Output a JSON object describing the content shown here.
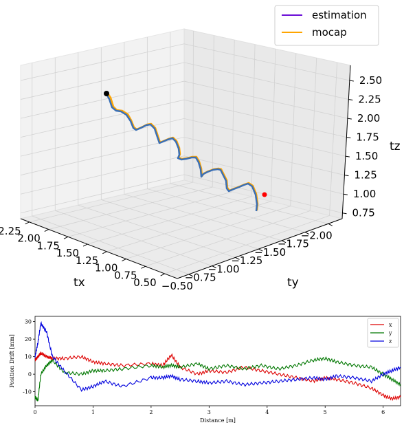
{
  "chart_data": [
    {
      "type": "line",
      "subtype": "3d-trajectory",
      "xlabel": "tx",
      "ylabel": "ty",
      "zlabel": "tz",
      "x_ticks": [
        "2.25",
        "2.00",
        "1.75",
        "1.50",
        "1.25",
        "1.00",
        "0.75",
        "0.50"
      ],
      "y_ticks": [
        "−0.50",
        "−0.75",
        "−1.00",
        "−1.25",
        "−1.50",
        "−1.75",
        "−2.00"
      ],
      "z_ticks": [
        "0.75",
        "1.00",
        "1.25",
        "1.50",
        "1.75",
        "2.00",
        "2.25",
        "2.50"
      ],
      "xlim": [
        0.5,
        2.25
      ],
      "ylim": [
        -2.0,
        -0.5
      ],
      "zlim": [
        0.75,
        2.5
      ],
      "grid": true,
      "legend_position": "top-right",
      "series": [
        {
          "name": "estimation",
          "color": "#6a0dd6"
        },
        {
          "name": "mocap",
          "color": "#ffa500"
        }
      ],
      "start_marker_color": "#000000",
      "end_marker_color": "#ff0000"
    },
    {
      "type": "line",
      "xlabel": "Distance [m]",
      "ylabel": "Position Drift [mm]",
      "xlim": [
        0,
        6.3
      ],
      "ylim": [
        -18,
        33
      ],
      "x_ticks": [
        0,
        1,
        2,
        3,
        4,
        5,
        6
      ],
      "y_ticks": [
        -10,
        0,
        10,
        20,
        30
      ],
      "grid": false,
      "legend_position": "top-right",
      "x": [
        0,
        0.05,
        0.1,
        0.2,
        0.3,
        0.5,
        0.8,
        1.0,
        1.2,
        1.5,
        2.0,
        2.2,
        2.35,
        2.5,
        2.8,
        3.0,
        3.3,
        3.6,
        3.9,
        4.2,
        4.5,
        4.8,
        5.0,
        5.2,
        5.5,
        5.8,
        6.0,
        6.15,
        6.3
      ],
      "series": [
        {
          "name": "x",
          "color": "#dd0000",
          "values": [
            8,
            10,
            12,
            10,
            9,
            9,
            10,
            7,
            6,
            5,
            6,
            5,
            11,
            4,
            0,
            2,
            1,
            4,
            2,
            0,
            -2,
            -4,
            -2,
            -3,
            -5,
            -8,
            -12,
            -14,
            -13
          ]
        },
        {
          "name": "y",
          "color": "#007700",
          "values": [
            -13,
            -15,
            0,
            5,
            8,
            1,
            0,
            2,
            2,
            3,
            5,
            4,
            5,
            4,
            6,
            3,
            5,
            3,
            5,
            3,
            5,
            8,
            9,
            7,
            5,
            4,
            0,
            -3,
            -6
          ]
        },
        {
          "name": "z",
          "color": "#0000dd",
          "values": [
            10,
            18,
            29,
            24,
            10,
            2,
            -9,
            -7,
            -4,
            -7,
            -2,
            -2,
            -1,
            -3,
            -4,
            -5,
            -4,
            -6,
            -5,
            -4,
            -3,
            -2,
            -3,
            -1,
            -2,
            -4,
            0,
            2,
            4
          ]
        }
      ]
    }
  ]
}
